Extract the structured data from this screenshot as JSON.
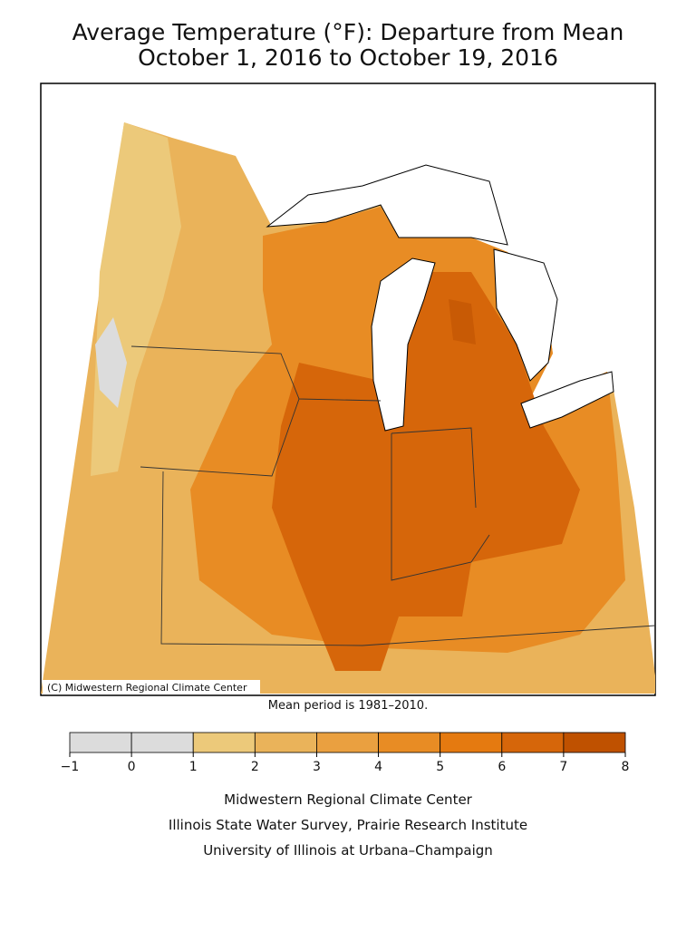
{
  "header": {
    "title": "Average Temperature (°F): Departure from Mean",
    "subtitle": "October 1, 2016 to October 19, 2016"
  },
  "map": {
    "credit": "(C) Midwestern Regional Climate Center",
    "note": "Mean period is 1981–2010."
  },
  "legend": {
    "ticks": [
      {
        "value": -1,
        "label": "−1"
      },
      0,
      1,
      2,
      3,
      4,
      5,
      6,
      7,
      8
    ],
    "colors": [
      "#dcdcdc",
      "#dcdcdc",
      "#ecc97a",
      "#eab35a",
      "#eaa040",
      "#e88c24",
      "#e57a10",
      "#d6660a",
      "#bf5100"
    ]
  },
  "footer": {
    "lines": [
      "Midwestern Regional Climate Center",
      "Illinois State Water Survey, Prairie Research Institute",
      "University of Illinois at Urbana–Champaign"
    ]
  }
}
